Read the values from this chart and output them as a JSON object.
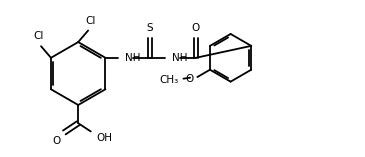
{
  "bg_color": "#ffffff",
  "line_color": "#000000",
  "line_width": 1.3,
  "font_size": 7.5,
  "fig_width": 3.65,
  "fig_height": 1.57,
  "dpi": 100,
  "xlim": [
    0,
    10.5
  ],
  "ylim": [
    -0.5,
    4.2
  ]
}
